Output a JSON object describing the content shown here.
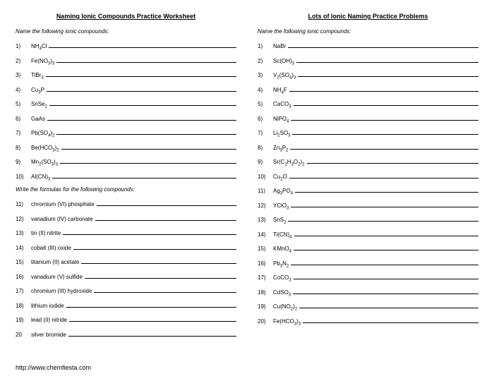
{
  "left": {
    "title": "Naming Ionic Compounds Practice Worksheet",
    "instruction1": "Name the following ionic compounds:",
    "instruction2": "Write the formulas for the following compounds:",
    "items1": [
      {
        "n": "1)",
        "f": "NH<sub>4</sub>Cl"
      },
      {
        "n": "2)",
        "f": "Fe(NO<sub>3</sub>)<sub>3</sub>"
      },
      {
        "n": "3)",
        "f": "TiBr<sub>3</sub>"
      },
      {
        "n": "4)",
        "f": "Cu<sub>3</sub>P"
      },
      {
        "n": "5)",
        "f": "SnSe<sub>2</sub>"
      },
      {
        "n": "6)",
        "f": "GaAs"
      },
      {
        "n": "7)",
        "f": "Pb(SO<sub>4</sub>)<sub>2</sub>"
      },
      {
        "n": "8)",
        "f": "Be(HCO<sub>3</sub>)<sub>2</sub>"
      },
      {
        "n": "9)",
        "f": "Mn<sub>2</sub>(SO<sub>3</sub>)<sub>3</sub>"
      },
      {
        "n": "10)",
        "f": "Al(CN)<sub>3</sub>"
      }
    ],
    "items2": [
      {
        "n": "11)",
        "f": "chromium (VI) phosphate"
      },
      {
        "n": "12)",
        "f": "vanadium (IV) carbonate"
      },
      {
        "n": "13)",
        "f": "tin (II) nitrite"
      },
      {
        "n": "14)",
        "f": "cobalt (III) oxide"
      },
      {
        "n": "15)",
        "f": "titanium (II) acetate"
      },
      {
        "n": "16)",
        "f": "vanadium (V) sulfide"
      },
      {
        "n": "17)",
        "f": "chromium (III) hydroxide"
      },
      {
        "n": "18)",
        "f": "lithium iodide"
      },
      {
        "n": "19)",
        "f": "lead (II) nitride"
      },
      {
        "n": "20",
        "f": "silver bromide"
      }
    ]
  },
  "right": {
    "title": "Lots of Ionic Naming Practice Problems",
    "instruction": "Name the following ionic compounds:",
    "items": [
      {
        "n": "1)",
        "f": "NaBr"
      },
      {
        "n": "2)",
        "f": "Sc(OH)<sub>3</sub>"
      },
      {
        "n": "3)",
        "f": "V<sub>2</sub>(SO<sub>4</sub>)<sub>3</sub>"
      },
      {
        "n": "4)",
        "f": "NH<sub>4</sub>F"
      },
      {
        "n": "5)",
        "f": "CaCO<sub>3</sub>"
      },
      {
        "n": "6)",
        "f": "NiPO<sub>4</sub>"
      },
      {
        "n": "7)",
        "f": "Li<sub>2</sub>SO<sub>3</sub>"
      },
      {
        "n": "8)",
        "f": "Zn<sub>3</sub>P<sub>2</sub>"
      },
      {
        "n": "9)",
        "f": "Sr(C<sub>2</sub>H<sub>3</sub>O<sub>2</sub>)<sub>2</sub>"
      },
      {
        "n": "10)",
        "f": "Cu<sub>2</sub>O"
      },
      {
        "n": "11)",
        "f": "Ag<sub>3</sub>PO<sub>4</sub>"
      },
      {
        "n": "12)",
        "f": "YClO<sub>3</sub>"
      },
      {
        "n": "13)",
        "f": "SnS<sub>2</sub>"
      },
      {
        "n": "14)",
        "f": "Ti(CN)<sub>4</sub>"
      },
      {
        "n": "15)",
        "f": "KMnO<sub>4</sub>"
      },
      {
        "n": "16)",
        "f": "Pb<sub>3</sub>N<sub>2</sub>"
      },
      {
        "n": "17)",
        "f": "CoCO<sub>3</sub>"
      },
      {
        "n": "18)",
        "f": "CdSO<sub>3</sub>"
      },
      {
        "n": "19)",
        "f": "Cu(NO<sub>2</sub>)<sub>2</sub>"
      },
      {
        "n": "20)",
        "f": "Fe(HCO<sub>3</sub>)<sub>3</sub>"
      }
    ]
  },
  "footer": "http://www.chemfiesta.com"
}
